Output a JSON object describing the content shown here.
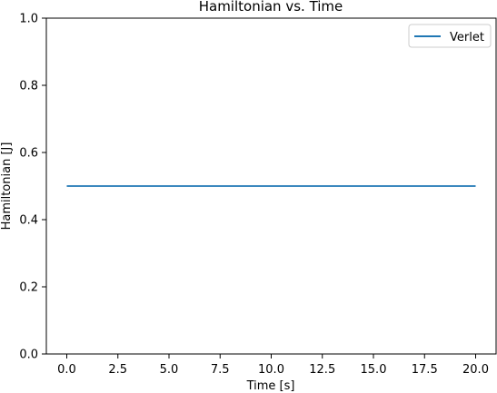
{
  "chart_data": {
    "type": "line",
    "title": "Hamiltonian vs. Time",
    "xlabel": "Time [s]",
    "ylabel": "Hamiltonian [J]",
    "xlim": [
      -1.0,
      21.0
    ],
    "ylim": [
      0.0,
      1.0
    ],
    "xticks": [
      0.0,
      2.5,
      5.0,
      7.5,
      10.0,
      12.5,
      15.0,
      17.5,
      20.0
    ],
    "xtick_labels": [
      "0.0",
      "2.5",
      "5.0",
      "7.5",
      "10.0",
      "12.5",
      "15.0",
      "17.5",
      "20.0"
    ],
    "yticks": [
      0.0,
      0.2,
      0.4,
      0.6,
      0.8,
      1.0
    ],
    "ytick_labels": [
      "0.0",
      "0.2",
      "0.4",
      "0.6",
      "0.8",
      "1.0"
    ],
    "grid": false,
    "legend_position": "top-right",
    "series": [
      {
        "name": "Verlet",
        "color": "#1f77b4",
        "x": [
          0.0,
          2.5,
          5.0,
          7.5,
          10.0,
          12.5,
          15.0,
          17.5,
          20.0
        ],
        "y": [
          0.5,
          0.5,
          0.5,
          0.5,
          0.5,
          0.5,
          0.5,
          0.5,
          0.5
        ]
      }
    ]
  }
}
